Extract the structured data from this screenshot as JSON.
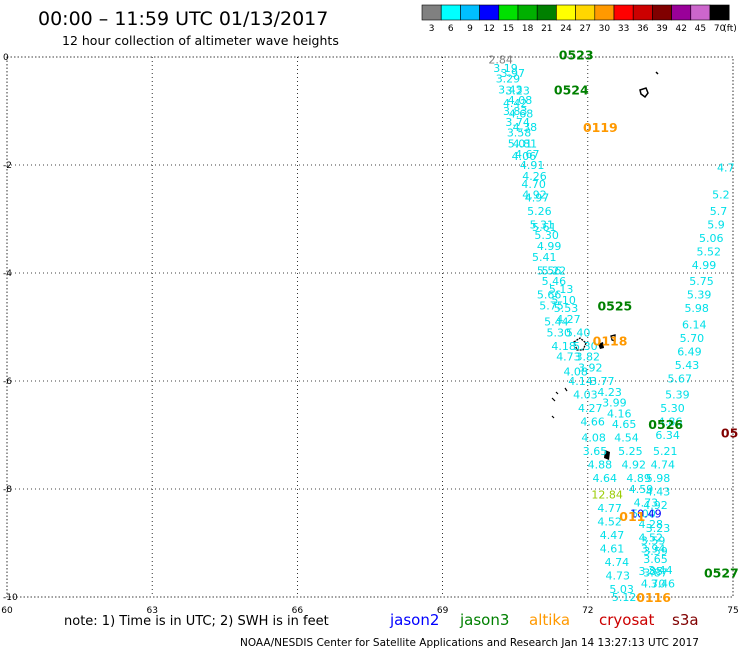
{
  "header": {
    "title": "00:00 – 11:59 UTC 01/13/2017",
    "subtitle": "12 hour collection of altimeter wave heights"
  },
  "color_scale": {
    "unit_label": "(ft)",
    "bins": [
      {
        "label": "3",
        "color": "#808080"
      },
      {
        "label": "6",
        "color": "#00ffff"
      },
      {
        "label": "9",
        "color": "#00bfff"
      },
      {
        "label": "12",
        "color": "#0000ff"
      },
      {
        "label": "15",
        "color": "#00e000"
      },
      {
        "label": "18",
        "color": "#00b000"
      },
      {
        "label": "21",
        "color": "#008000"
      },
      {
        "label": "24",
        "color": "#ffff00"
      },
      {
        "label": "27",
        "color": "#ffd700"
      },
      {
        "label": "30",
        "color": "#ff9900"
      },
      {
        "label": "33",
        "color": "#ff0000"
      },
      {
        "label": "36",
        "color": "#cc0000"
      },
      {
        "label": "39",
        "color": "#800000"
      },
      {
        "label": "42",
        "color": "#990099"
      },
      {
        "label": "45",
        "color": "#cc66cc"
      },
      {
        "label": "70",
        "color": "#000000"
      }
    ]
  },
  "map": {
    "lon_ticks": [
      "60",
      "63",
      "66",
      "69",
      "72",
      "75"
    ],
    "lat_ticks": [
      "0",
      "-2",
      "-4",
      "-6",
      "-8",
      "-10"
    ],
    "lon_range": [
      60,
      75
    ],
    "lat_range": [
      -10,
      0
    ]
  },
  "colors": {
    "cyan": "#00e0e8",
    "jason2": "#0000ff",
    "jason3": "#008000",
    "altika": "#ff9900",
    "cryosat": "#cc0000",
    "s3a": "#800000",
    "gray": "#808080",
    "yellowgreen": "#99cc00"
  },
  "chart_data": {
    "type": "scatter",
    "title": "12 hour collection of altimeter wave heights",
    "unit": "ft",
    "series": [
      {
        "name": "jason3",
        "color": "cyan",
        "points": [
          {
            "lon": 70.2,
            "lat": -0.05,
            "v": "2.84",
            "c": "gray"
          },
          {
            "lon": 70.3,
            "lat": -0.2,
            "v": "3.19"
          },
          {
            "lon": 70.45,
            "lat": -0.3,
            "v": "3.97"
          },
          {
            "lon": 70.35,
            "lat": -0.4,
            "v": "3.29"
          },
          {
            "lon": 70.4,
            "lat": -0.6,
            "v": "3.43"
          },
          {
            "lon": 70.55,
            "lat": -0.62,
            "v": "3.23"
          },
          {
            "lon": 70.6,
            "lat": -0.8,
            "v": "4.08"
          },
          {
            "lon": 70.5,
            "lat": -0.85,
            "v": "4.42"
          },
          {
            "lon": 70.5,
            "lat": -1.0,
            "v": "3.83"
          },
          {
            "lon": 70.62,
            "lat": -1.05,
            "v": "4.68"
          },
          {
            "lon": 70.55,
            "lat": -1.2,
            "v": "3.74"
          },
          {
            "lon": 70.7,
            "lat": -1.3,
            "v": "4.38"
          },
          {
            "lon": 70.58,
            "lat": -1.4,
            "v": "3.58"
          },
          {
            "lon": 70.6,
            "lat": -1.6,
            "v": "5.01"
          },
          {
            "lon": 70.7,
            "lat": -1.6,
            "v": "4.81"
          },
          {
            "lon": 70.75,
            "lat": -1.8,
            "v": "4.67"
          },
          {
            "lon": 70.68,
            "lat": -1.83,
            "v": "4.06"
          },
          {
            "lon": 70.85,
            "lat": -2.0,
            "v": "4.91"
          },
          {
            "lon": 70.9,
            "lat": -2.2,
            "v": "4.26"
          },
          {
            "lon": 70.88,
            "lat": -2.35,
            "v": "4.70"
          },
          {
            "lon": 70.95,
            "lat": -2.6,
            "v": "4.97"
          },
          {
            "lon": 70.9,
            "lat": -2.55,
            "v": "4.92"
          },
          {
            "lon": 71.0,
            "lat": -2.85,
            "v": "5.26"
          },
          {
            "lon": 71.05,
            "lat": -3.1,
            "v": "5.31"
          },
          {
            "lon": 71.15,
            "lat": -3.3,
            "v": "5.30"
          },
          {
            "lon": 71.2,
            "lat": -3.5,
            "v": "4.99"
          },
          {
            "lon": 71.1,
            "lat": -3.15,
            "v": "5.61"
          },
          {
            "lon": 71.1,
            "lat": -3.7,
            "v": "5.41"
          },
          {
            "lon": 71.3,
            "lat": -3.95,
            "v": "5.22"
          },
          {
            "lon": 71.2,
            "lat": -3.95,
            "v": "5.56"
          },
          {
            "lon": 71.3,
            "lat": -4.15,
            "v": "5.46"
          },
          {
            "lon": 71.45,
            "lat": -4.3,
            "v": "5.13"
          },
          {
            "lon": 71.2,
            "lat": -4.4,
            "v": "5.66"
          },
          {
            "lon": 71.5,
            "lat": -4.5,
            "v": "5.10"
          },
          {
            "lon": 71.25,
            "lat": -4.6,
            "v": "5.75"
          },
          {
            "lon": 71.55,
            "lat": -4.65,
            "v": "5.53"
          },
          {
            "lon": 71.35,
            "lat": -4.9,
            "v": "5.44"
          },
          {
            "lon": 71.6,
            "lat": -4.85,
            "v": "4.27"
          },
          {
            "lon": 71.4,
            "lat": -5.1,
            "v": "5.30"
          },
          {
            "lon": 71.8,
            "lat": -5.1,
            "v": "5.40"
          },
          {
            "lon": 71.5,
            "lat": -5.35,
            "v": "4.18"
          },
          {
            "lon": 71.95,
            "lat": -5.35,
            "v": "5.30"
          },
          {
            "lon": 71.6,
            "lat": -5.55,
            "v": "4.73"
          },
          {
            "lon": 72.0,
            "lat": -5.55,
            "v": "3.82"
          },
          {
            "lon": 71.75,
            "lat": -5.82,
            "v": "4.08"
          },
          {
            "lon": 72.05,
            "lat": -5.75,
            "v": "3.92"
          },
          {
            "lon": 71.85,
            "lat": -6.0,
            "v": "4.14"
          },
          {
            "lon": 72.3,
            "lat": -6.0,
            "v": "3.77"
          },
          {
            "lon": 71.95,
            "lat": -6.25,
            "v": "4.03"
          },
          {
            "lon": 72.45,
            "lat": -6.2,
            "v": "4.23"
          },
          {
            "lon": 72.05,
            "lat": -6.5,
            "v": "4.27"
          },
          {
            "lon": 72.55,
            "lat": -6.4,
            "v": "3.99"
          },
          {
            "lon": 72.1,
            "lat": -6.75,
            "v": "4.66"
          },
          {
            "lon": 72.65,
            "lat": -6.6,
            "v": "4.16"
          },
          {
            "lon": 72.12,
            "lat": -7.05,
            "v": "4.08"
          },
          {
            "lon": 72.75,
            "lat": -6.8,
            "v": "4.65"
          },
          {
            "lon": 72.15,
            "lat": -7.3,
            "v": "3.65"
          },
          {
            "lon": 72.8,
            "lat": -7.05,
            "v": "4.54"
          },
          {
            "lon": 72.25,
            "lat": -7.55,
            "v": "4.88"
          },
          {
            "lon": 72.88,
            "lat": -7.3,
            "v": "5.25"
          },
          {
            "lon": 72.35,
            "lat": -7.8,
            "v": "4.64"
          },
          {
            "lon": 72.95,
            "lat": -7.55,
            "v": "4.92"
          },
          {
            "lon": 72.4,
            "lat": -8.1,
            "v": "12.84",
            "c": "yellowgreen"
          },
          {
            "lon": 73.05,
            "lat": -7.8,
            "v": "4.89"
          },
          {
            "lon": 73.1,
            "lat": -8.0,
            "v": "4.59"
          },
          {
            "lon": 72.45,
            "lat": -8.35,
            "v": "4.77"
          },
          {
            "lon": 73.2,
            "lat": -8.25,
            "v": "4.73"
          },
          {
            "lon": 73.15,
            "lat": -8.45,
            "v": "5.00"
          },
          {
            "lon": 72.45,
            "lat": -8.6,
            "v": "4.52"
          },
          {
            "lon": 73.3,
            "lat": -8.65,
            "v": "4.28"
          },
          {
            "lon": 72.5,
            "lat": -8.85,
            "v": "4.47"
          },
          {
            "lon": 73.3,
            "lat": -8.9,
            "v": "4.52"
          },
          {
            "lon": 73.35,
            "lat": -9.1,
            "v": "3.94"
          },
          {
            "lon": 72.5,
            "lat": -9.1,
            "v": "4.61"
          },
          {
            "lon": 73.4,
            "lat": -9.3,
            "v": "3.65"
          },
          {
            "lon": 72.6,
            "lat": -9.35,
            "v": "4.74"
          },
          {
            "lon": 73.5,
            "lat": -9.5,
            "v": "3.44"
          },
          {
            "lon": 72.62,
            "lat": -9.6,
            "v": "4.73"
          },
          {
            "lon": 73.35,
            "lat": -9.75,
            "v": "4.70"
          },
          {
            "lon": 72.7,
            "lat": -9.85,
            "v": "5.03"
          },
          {
            "lon": 72.75,
            "lat": -10.0,
            "v": "5.12"
          },
          {
            "lon": 73.55,
            "lat": -9.75,
            "v": "3.46"
          },
          {
            "lon": 73.3,
            "lat": -9.52,
            "v": "3.85"
          },
          {
            "lon": 73.4,
            "lat": -9.55,
            "v": "3.87"
          },
          {
            "lon": 73.4,
            "lat": -9.15,
            "v": "3.59"
          },
          {
            "lon": 73.35,
            "lat": -8.95,
            "v": "3.59"
          },
          {
            "lon": 73.45,
            "lat": -8.72,
            "v": "3.23"
          }
        ]
      },
      {
        "name": "cryosat",
        "color": "cyan",
        "points": [
          {
            "lon": 74.85,
            "lat": -2.05,
            "v": "4.7"
          },
          {
            "lon": 74.75,
            "lat": -2.55,
            "v": "5.2"
          },
          {
            "lon": 74.7,
            "lat": -2.85,
            "v": "5.7"
          },
          {
            "lon": 74.65,
            "lat": -3.1,
            "v": "5.9"
          },
          {
            "lon": 74.55,
            "lat": -3.35,
            "v": "5.06"
          },
          {
            "lon": 74.5,
            "lat": -3.6,
            "v": "5.52"
          },
          {
            "lon": 74.4,
            "lat": -3.85,
            "v": "4.99"
          },
          {
            "lon": 74.35,
            "lat": -4.15,
            "v": "5.75"
          },
          {
            "lon": 74.3,
            "lat": -4.4,
            "v": "5.39"
          },
          {
            "lon": 74.25,
            "lat": -4.65,
            "v": "5.98"
          },
          {
            "lon": 74.2,
            "lat": -4.95,
            "v": "6.14"
          },
          {
            "lon": 74.15,
            "lat": -5.2,
            "v": "5.70"
          },
          {
            "lon": 74.1,
            "lat": -5.45,
            "v": "6.49"
          },
          {
            "lon": 74.05,
            "lat": -5.7,
            "v": "5.43"
          },
          {
            "lon": 73.9,
            "lat": -5.95,
            "v": "5.67"
          },
          {
            "lon": 73.85,
            "lat": -6.25,
            "v": "5.39"
          },
          {
            "lon": 73.75,
            "lat": -6.5,
            "v": "5.30"
          },
          {
            "lon": 73.7,
            "lat": -6.75,
            "v": "4.86"
          },
          {
            "lon": 73.65,
            "lat": -7.0,
            "v": "6.34"
          },
          {
            "lon": 73.6,
            "lat": -7.3,
            "v": "5.21"
          },
          {
            "lon": 73.55,
            "lat": -7.55,
            "v": "4.74"
          },
          {
            "lon": 73.45,
            "lat": -7.8,
            "v": "5.98"
          },
          {
            "lon": 73.45,
            "lat": -8.05,
            "v": "4.43"
          },
          {
            "lon": 73.4,
            "lat": -8.3,
            "v": "4.92"
          },
          {
            "lon": 73.2,
            "lat": -8.45,
            "v": "10.49",
            "c": "jason2"
          }
        ]
      }
    ],
    "pass_labels": [
      {
        "lon": 71.4,
        "lat": 0.05,
        "text": "0523",
        "c": "jason3"
      },
      {
        "lon": 71.3,
        "lat": -0.6,
        "text": "0524",
        "c": "jason3"
      },
      {
        "lon": 71.9,
        "lat": -1.3,
        "text": "0119",
        "c": "altika"
      },
      {
        "lon": 72.2,
        "lat": -4.6,
        "text": "0525",
        "c": "jason3"
      },
      {
        "lon": 72.1,
        "lat": -5.25,
        "text": "0118",
        "c": "altika"
      },
      {
        "lon": 73.25,
        "lat": -6.8,
        "text": "0526",
        "c": "jason3"
      },
      {
        "lon": 74.75,
        "lat": -6.95,
        "text": "05",
        "c": "s3a"
      },
      {
        "lon": 72.65,
        "lat": -8.5,
        "text": "011",
        "c": "altika"
      },
      {
        "lon": 74.4,
        "lat": -9.55,
        "text": "0527",
        "c": "jason3"
      },
      {
        "lon": 73.0,
        "lat": -10.0,
        "text": "0116",
        "c": "altika"
      }
    ]
  },
  "footer": {
    "note": "note: 1) Time is in UTC; 2) SWH is in feet",
    "satellites": [
      {
        "label": "jason2",
        "color": "jason2"
      },
      {
        "label": "jason3",
        "color": "jason3"
      },
      {
        "label": "altika",
        "color": "altika"
      },
      {
        "label": "cryosat",
        "color": "cryosat"
      },
      {
        "label": "s3a",
        "color": "s3a"
      }
    ],
    "credit": "NOAA/NESDIS Center for Satellite Applications and Research    Jan 14 13:27:13 UTC 2017"
  }
}
